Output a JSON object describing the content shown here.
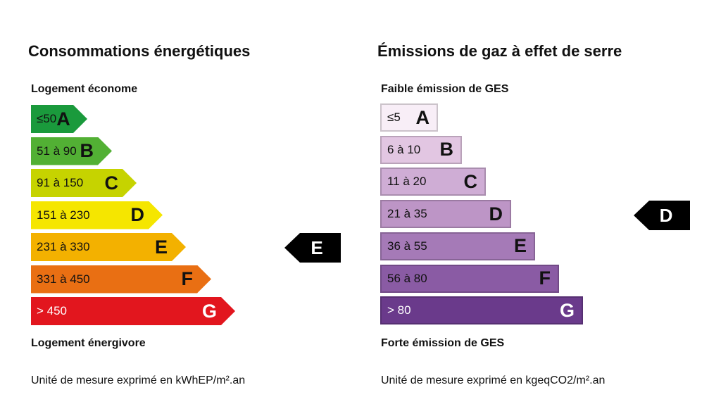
{
  "dpe": {
    "title": "Consommations énergétiques",
    "top_label": "Logement économe",
    "bottom_label": "Logement énergivore",
    "unit": "Unité de mesure exprimé en kWhEP/m².an",
    "current_class": "E",
    "classes": [
      {
        "letter": "A",
        "range": "≤50",
        "color": "#1a9a3c",
        "text_color": "#111111"
      },
      {
        "letter": "B",
        "range": "51 à 90",
        "color": "#52b034",
        "text_color": "#111111"
      },
      {
        "letter": "C",
        "range": "91 à 150",
        "color": "#c6d300",
        "text_color": "#111111"
      },
      {
        "letter": "D",
        "range": "151 à 230",
        "color": "#f5e600",
        "text_color": "#111111"
      },
      {
        "letter": "E",
        "range": "231 à 330",
        "color": "#f3b100",
        "text_color": "#111111"
      },
      {
        "letter": "F",
        "range": "331 à 450",
        "color": "#e96f13",
        "text_color": "#111111"
      },
      {
        "letter": "G",
        "range": "> 450",
        "color": "#e2161e",
        "text_color": "#ffffff"
      }
    ]
  },
  "ges": {
    "title": "Émissions de gaz à effet de serre",
    "top_label": "Faible émission de GES",
    "bottom_label": "Forte émission de GES",
    "unit": "Unité de mesure exprimé en kgeqCO2/m².an",
    "current_class": "D",
    "classes": [
      {
        "letter": "A",
        "range": "≤5",
        "color": "#f8eef7",
        "text_color": "#111111"
      },
      {
        "letter": "B",
        "range": "6 à 10",
        "color": "#e2c6e2",
        "text_color": "#111111"
      },
      {
        "letter": "C",
        "range": "11 à 20",
        "color": "#cfadd5",
        "text_color": "#111111"
      },
      {
        "letter": "D",
        "range": "21 à 35",
        "color": "#bd95c6",
        "text_color": "#111111"
      },
      {
        "letter": "E",
        "range": "36 à 55",
        "color": "#a57ab7",
        "text_color": "#111111"
      },
      {
        "letter": "F",
        "range": "56 à 80",
        "color": "#8a5ba4",
        "text_color": "#111111"
      },
      {
        "letter": "G",
        "range": "> 80",
        "color": "#6a3a8b",
        "text_color": "#ffffff"
      }
    ]
  }
}
